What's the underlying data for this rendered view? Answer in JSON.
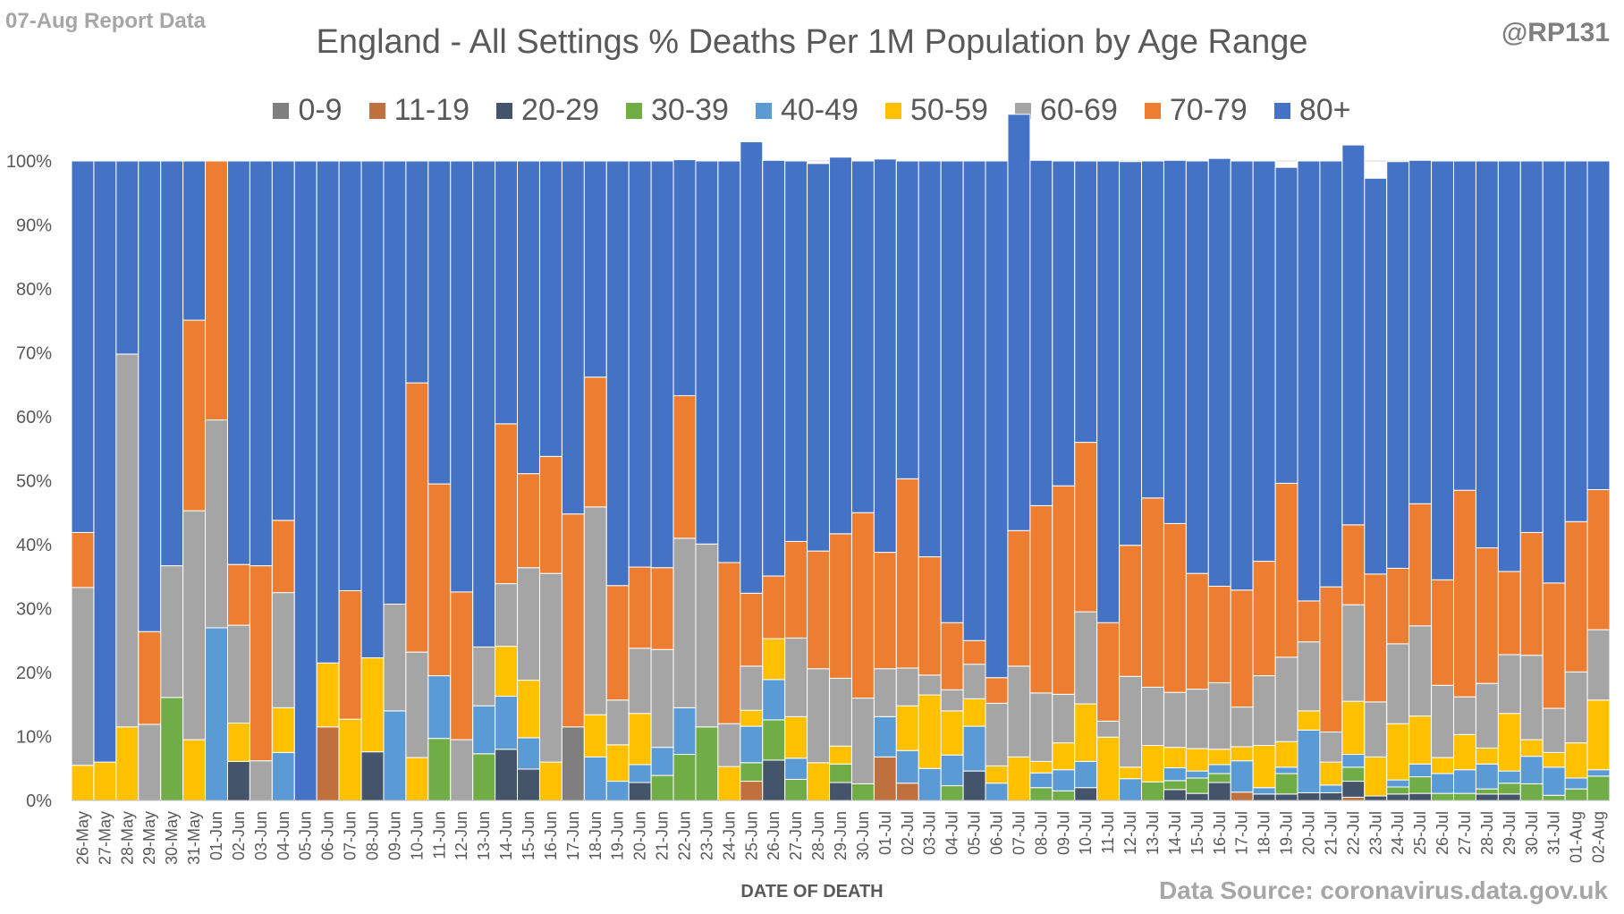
{
  "report_tag": "07-Aug Report Data",
  "handle": "@RP131",
  "source": "Data Source: coronavirus.data.gov.uk",
  "chart_data": {
    "type": "bar",
    "stacked": true,
    "normalized": true,
    "title": "England - All Settings % Deaths Per 1M Population by Age Range",
    "xlabel": "DATE OF DEATH",
    "ylabel": "",
    "ylim": [
      0,
      100
    ],
    "yticks": [
      "0%",
      "10%",
      "20%",
      "30%",
      "40%",
      "50%",
      "60%",
      "70%",
      "80%",
      "90%",
      "100%"
    ],
    "legend_position": "top",
    "grid": true,
    "categories": [
      "26-May",
      "27-May",
      "28-May",
      "29-May",
      "30-May",
      "31-May",
      "01-Jun",
      "02-Jun",
      "03-Jun",
      "04-Jun",
      "05-Jun",
      "06-Jun",
      "07-Jun",
      "08-Jun",
      "09-Jun",
      "10-Jun",
      "11-Jun",
      "12-Jun",
      "13-Jun",
      "14-Jun",
      "15-Jun",
      "16-Jun",
      "17-Jun",
      "18-Jun",
      "19-Jun",
      "20-Jun",
      "21-Jun",
      "22-Jun",
      "23-Jun",
      "24-Jun",
      "25-Jun",
      "26-Jun",
      "27-Jun",
      "28-Jun",
      "29-Jun",
      "30-Jun",
      "01-Jul",
      "02-Jul",
      "03-Jul",
      "04-Jul",
      "05-Jul",
      "06-Jul",
      "07-Jul",
      "08-Jul",
      "09-Jul",
      "10-Jul",
      "11-Jul",
      "12-Jul",
      "13-Jul",
      "14-Jul",
      "15-Jul",
      "16-Jul",
      "17-Jul",
      "18-Jul",
      "19-Jul",
      "20-Jul",
      "21-Jul",
      "22-Jul",
      "23-Jul",
      "24-Jul",
      "25-Jul",
      "26-Jul",
      "27-Jul",
      "28-Jul",
      "29-Jul",
      "30-Jul",
      "31-Jul",
      "01-Aug",
      "02-Aug"
    ],
    "series": [
      {
        "name": "0-9",
        "color": "#7f7f7f",
        "values": [
          0,
          0,
          0,
          0,
          0,
          0,
          0,
          0,
          0,
          0,
          0,
          0,
          0,
          0,
          0,
          0,
          0,
          0,
          0,
          0,
          0,
          0,
          11.5,
          0,
          0,
          0,
          0,
          0,
          0,
          0,
          0,
          0,
          0,
          0,
          0,
          0,
          0,
          0,
          0,
          0,
          0,
          0,
          0,
          0,
          0,
          0,
          0,
          0,
          0,
          0,
          0,
          0,
          0,
          0,
          0,
          0,
          0,
          0,
          0,
          0,
          0,
          0,
          0,
          0,
          0,
          0,
          0,
          0,
          0
        ]
      },
      {
        "name": "11-19",
        "color": "#c0703c",
        "values": [
          0,
          0,
          0,
          0,
          0,
          0,
          0,
          0,
          0,
          0,
          0,
          11.5,
          0,
          0,
          0,
          0,
          0,
          0,
          0,
          0,
          0,
          0,
          0,
          0,
          0,
          0,
          0,
          0,
          0,
          0,
          3,
          0,
          0,
          0,
          0,
          0,
          6.8,
          2.7,
          0,
          0,
          0,
          0,
          0,
          0,
          0,
          0,
          0,
          0,
          0,
          0,
          0,
          0,
          1.3,
          0,
          0,
          0,
          0,
          0.5,
          0,
          0,
          0,
          0,
          0,
          0,
          0,
          0,
          0,
          0,
          0
        ]
      },
      {
        "name": "20-29",
        "color": "#44546a",
        "values": [
          0,
          0,
          0,
          0,
          0,
          0,
          0,
          6.1,
          0,
          0,
          0,
          0,
          0,
          7.6,
          0,
          0,
          0,
          0,
          0,
          8,
          4.9,
          0,
          0,
          0,
          0,
          2.8,
          0,
          0,
          0,
          0,
          0,
          6.3,
          0,
          0,
          2.8,
          0,
          0,
          0,
          0,
          0,
          4.6,
          0,
          0,
          0,
          0,
          2,
          0,
          0,
          0,
          1.7,
          1.1,
          2.8,
          0,
          1,
          1,
          1.2,
          1.2,
          2.5,
          0.7,
          1,
          1.1,
          0,
          0,
          1,
          1,
          0,
          0,
          0,
          0
        ]
      },
      {
        "name": "30-39",
        "color": "#70ad47",
        "values": [
          0,
          0,
          0,
          0,
          16.1,
          0,
          0,
          0,
          0,
          0,
          0,
          0,
          0,
          0,
          0,
          0,
          9.7,
          0,
          7.3,
          0,
          0,
          0,
          0,
          0,
          0,
          0,
          3.9,
          7.2,
          11.5,
          0,
          2.9,
          6.3,
          3.3,
          0,
          2.9,
          2.6,
          0,
          0,
          0,
          2.3,
          0,
          0,
          0,
          2,
          1.5,
          0,
          0,
          0,
          2.9,
          1.4,
          2.4,
          1.4,
          0,
          0,
          3.2,
          0,
          0,
          2.2,
          0,
          1.1,
          2.6,
          1.1,
          1.1,
          0.8,
          1.7,
          2.6,
          0.8,
          1.8,
          3.8
        ]
      },
      {
        "name": "40-49",
        "color": "#5b9bd5",
        "values": [
          0,
          0,
          0,
          0,
          0,
          0,
          27,
          0,
          0,
          7.5,
          0,
          0,
          0,
          0,
          14,
          0,
          9.8,
          0,
          7.5,
          8.3,
          4.9,
          0,
          0,
          6.8,
          3,
          2.8,
          4.4,
          7.3,
          0,
          0,
          5.7,
          6.3,
          3.3,
          0,
          0,
          0,
          6.3,
          5.1,
          5,
          4.8,
          7,
          2.7,
          0,
          2.3,
          3.3,
          4.1,
          0,
          3.4,
          0,
          2,
          1.1,
          1.4,
          4.9,
          1,
          1,
          9.8,
          1.2,
          2,
          0,
          1.1,
          2,
          3.1,
          3.7,
          3.9,
          1.9,
          4.3,
          4.4,
          1.7,
          1
        ]
      },
      {
        "name": "50-59",
        "color": "#ffc000",
        "values": [
          5.5,
          6,
          11.5,
          0,
          0,
          9.5,
          0,
          6,
          0,
          7,
          0,
          10,
          12.7,
          14.7,
          0,
          6.7,
          0,
          0,
          0,
          7.8,
          9,
          6,
          0,
          6.6,
          5.7,
          8,
          0,
          0,
          0,
          5.3,
          2.5,
          6.4,
          6.5,
          5.9,
          2.8,
          0,
          0,
          7,
          11.5,
          6.9,
          4.3,
          2.7,
          6.8,
          1.8,
          4.2,
          9,
          9.9,
          1.8,
          5.7,
          3.2,
          3.5,
          2.4,
          2.2,
          6.6,
          4,
          3,
          3.6,
          8.3,
          6.1,
          8.8,
          7.5,
          2.5,
          5.5,
          2.5,
          9,
          2.6,
          2.3,
          5.5,
          10.9
        ]
      },
      {
        "name": "60-69",
        "color": "#a5a5a5",
        "values": [
          27.8,
          0,
          58.3,
          11.9,
          20.6,
          35.8,
          32.5,
          15.3,
          6.2,
          18,
          0,
          0,
          0,
          0,
          16.7,
          16.5,
          0,
          9.5,
          9.2,
          9.8,
          17.6,
          29.5,
          0,
          32.5,
          7,
          10.2,
          15.3,
          26.5,
          28.6,
          6.7,
          6.9,
          0,
          12.3,
          14.7,
          10.6,
          13.4,
          7.5,
          5.9,
          3.1,
          3.3,
          5.4,
          9.8,
          14.2,
          10.7,
          7.6,
          14.4,
          2.5,
          14.2,
          9.1,
          8.6,
          9.3,
          10.4,
          6.2,
          10.9,
          13.2,
          10.8,
          4.7,
          15.1,
          8.6,
          12.5,
          14.1,
          11.3,
          5.9,
          10.1,
          9.2,
          13.2,
          6.9,
          11.1,
          11
        ]
      },
      {
        "name": "70-79",
        "color": "#ed7d31",
        "values": [
          8.6,
          0,
          0,
          14.5,
          0,
          29.8,
          40.5,
          9.5,
          30.5,
          11.3,
          0,
          0,
          20.1,
          0,
          0,
          42.1,
          30,
          23.1,
          0,
          25,
          14.7,
          18.3,
          33.3,
          20.3,
          17.9,
          12.7,
          12.8,
          22.3,
          0,
          25.2,
          11.4,
          9.8,
          15.1,
          18.4,
          22.6,
          29,
          18.2,
          29.6,
          18.5,
          10.5,
          3.7,
          4,
          21.2,
          29.3,
          32.6,
          26.5,
          15.4,
          20.5,
          29.6,
          26.4,
          18.1,
          15.1,
          18.3,
          17.9,
          27.2,
          6.4,
          22.7,
          12.5,
          20,
          11.8,
          19.1,
          16.5,
          32.3,
          21.2,
          13,
          19.2,
          19.6,
          23.5,
          21.9
        ]
      },
      {
        "name": "80+",
        "color": "#4472c4",
        "values": [
          58.1,
          94,
          30.2,
          73.6,
          63.3,
          24.9,
          0,
          63.1,
          63.3,
          56.2,
          100,
          78.5,
          67.2,
          77.7,
          69.3,
          34.7,
          50.5,
          67.4,
          76,
          41.1,
          48.9,
          46.2,
          55.2,
          33.8,
          66.4,
          63.5,
          63.6,
          36.9,
          59.9,
          62.8,
          70.6,
          65,
          59.5,
          60.6,
          58.9,
          55,
          61.5,
          49.7,
          61.9,
          72.2,
          75,
          80.8,
          65.1,
          54,
          50.8,
          44,
          72.2,
          60,
          52.7,
          56.8,
          64.5,
          66.9,
          67.1,
          62.6,
          49.4,
          68.8,
          66.6,
          59.4,
          61.9,
          63.6,
          53.7,
          65.5,
          51.5,
          60.5,
          64.2,
          58.1,
          66,
          56.4,
          51.4
        ]
      }
    ]
  }
}
